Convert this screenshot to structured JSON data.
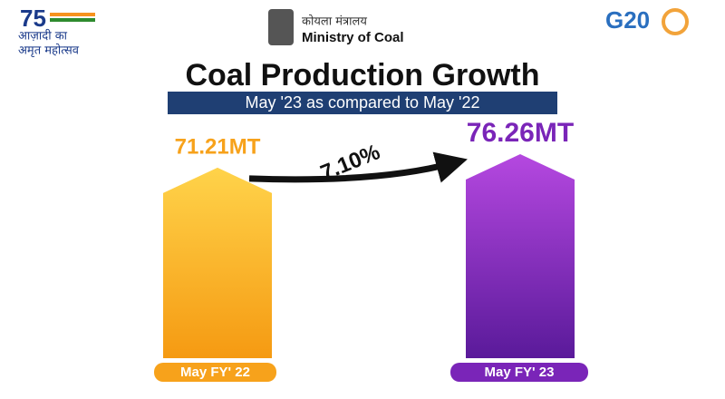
{
  "header": {
    "azadi_top": "आज़ादी का",
    "azadi_bottom": "अमृत महोत्सव",
    "ministry_hindi": "कोयला मंत्रालय",
    "ministry": "Ministry of Coal",
    "g20": "G20"
  },
  "chart_data": {
    "type": "bar",
    "title": "Coal Production Growth",
    "subtitle": "May '23 as compared to May '22",
    "categories": [
      "May FY' 22",
      "May FY' 23"
    ],
    "values": [
      71.21,
      76.26
    ],
    "value_labels": [
      "71.21MT",
      "76.26MT"
    ],
    "colors": [
      "#f7a21b",
      "#7a25b8"
    ],
    "annotation": "7.10%"
  }
}
